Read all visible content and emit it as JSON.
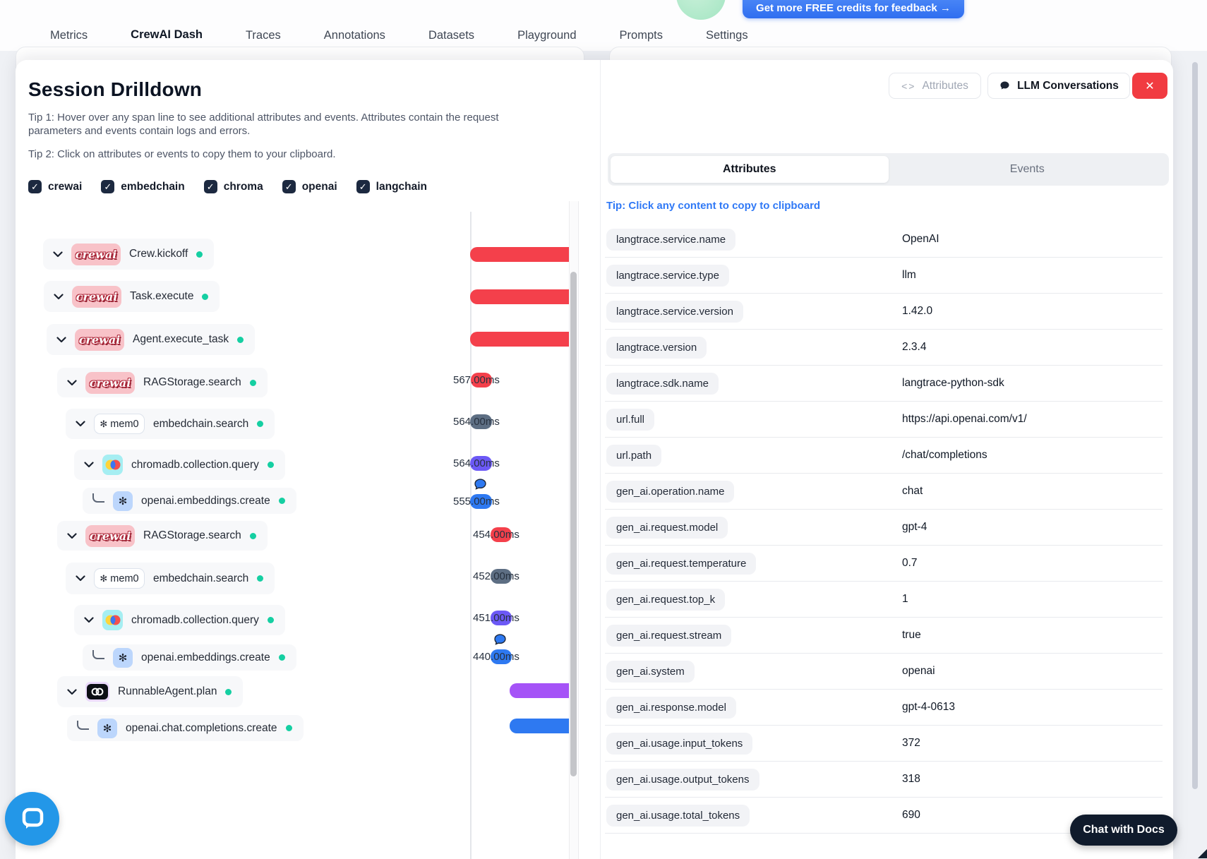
{
  "header": {
    "credits_button": "Get more FREE credits for feedback →"
  },
  "nav": {
    "tabs": [
      {
        "label": "Metrics",
        "active": false
      },
      {
        "label": "CrewAI Dash",
        "active": true
      },
      {
        "label": "Traces",
        "active": false
      },
      {
        "label": "Annotations",
        "active": false
      },
      {
        "label": "Datasets",
        "active": false
      },
      {
        "label": "Playground",
        "active": false
      },
      {
        "label": "Prompts",
        "active": false
      },
      {
        "label": "Settings",
        "active": false
      }
    ]
  },
  "drilldown": {
    "title": "Session Drilldown",
    "tip1": "Tip 1: Hover over any span line to see additional attributes and events. Attributes contain the request parameters and events contain logs and errors.",
    "tip2": "Tip 2: Click on attributes or events to copy them to your clipboard.",
    "filters": [
      {
        "label": "crewai",
        "checked": true
      },
      {
        "label": "embedchain",
        "checked": true
      },
      {
        "label": "chroma",
        "checked": true
      },
      {
        "label": "openai",
        "checked": true
      },
      {
        "label": "langchain",
        "checked": true
      }
    ],
    "spans": [
      {
        "label": "Crew.kickoff",
        "vendor": "crewai",
        "duration": null,
        "color": "red",
        "leaf": false
      },
      {
        "label": "Task.execute",
        "vendor": "crewai",
        "duration": null,
        "color": "red",
        "leaf": false
      },
      {
        "label": "Agent.execute_task",
        "vendor": "crewai",
        "duration": null,
        "color": "red",
        "leaf": false
      },
      {
        "label": "RAGStorage.search",
        "vendor": "crewai",
        "duration": "567.00ms",
        "color": "red",
        "leaf": false
      },
      {
        "label": "embedchain.search",
        "vendor": "mem0",
        "duration": "564.00ms",
        "color": "slate",
        "leaf": false
      },
      {
        "label": "chromadb.collection.query",
        "vendor": "chroma",
        "duration": "564.00ms",
        "color": "indigo",
        "leaf": false
      },
      {
        "label": "openai.embeddings.create",
        "vendor": "openai",
        "duration": "555.00ms",
        "color": "blue",
        "leaf": true,
        "bubble": true
      },
      {
        "label": "RAGStorage.search",
        "vendor": "crewai",
        "duration": "454.00ms",
        "color": "red",
        "leaf": false
      },
      {
        "label": "embedchain.search",
        "vendor": "mem0",
        "duration": "452.00ms",
        "color": "slate",
        "leaf": false
      },
      {
        "label": "chromadb.collection.query",
        "vendor": "chroma",
        "duration": "451.00ms",
        "color": "indigo",
        "leaf": false
      },
      {
        "label": "openai.embeddings.create",
        "vendor": "openai",
        "duration": "440.00ms",
        "color": "blue",
        "leaf": true,
        "bubble": true
      },
      {
        "label": "RunnableAgent.plan",
        "vendor": "langchain",
        "duration": null,
        "color": "purple",
        "leaf": false
      },
      {
        "label": "openai.chat.completions.create",
        "vendor": "openai",
        "duration": null,
        "color": "blue",
        "leaf": true
      }
    ]
  },
  "details": {
    "attributes_button": "Attributes",
    "llm_button": "LLM Conversations",
    "tabs": [
      "Attributes",
      "Events"
    ],
    "active_tab": "Attributes",
    "tip": "Tip: Click any content to copy to clipboard",
    "rows": [
      {
        "key": "langtrace.service.name",
        "value": "OpenAI"
      },
      {
        "key": "langtrace.service.type",
        "value": "llm"
      },
      {
        "key": "langtrace.service.version",
        "value": "1.42.0"
      },
      {
        "key": "langtrace.version",
        "value": "2.3.4"
      },
      {
        "key": "langtrace.sdk.name",
        "value": "langtrace-python-sdk"
      },
      {
        "key": "url.full",
        "value": "https://api.openai.com/v1/"
      },
      {
        "key": "url.path",
        "value": "/chat/completions"
      },
      {
        "key": "gen_ai.operation.name",
        "value": "chat"
      },
      {
        "key": "gen_ai.request.model",
        "value": "gpt-4"
      },
      {
        "key": "gen_ai.request.temperature",
        "value": "0.7"
      },
      {
        "key": "gen_ai.request.top_k",
        "value": "1"
      },
      {
        "key": "gen_ai.request.stream",
        "value": "true"
      },
      {
        "key": "gen_ai.system",
        "value": "openai"
      },
      {
        "key": "gen_ai.response.model",
        "value": "gpt-4-0613"
      },
      {
        "key": "gen_ai.usage.input_tokens",
        "value": "372"
      },
      {
        "key": "gen_ai.usage.output_tokens",
        "value": "318"
      },
      {
        "key": "gen_ai.usage.total_tokens",
        "value": "690"
      }
    ]
  },
  "overlays": {
    "chat_with_docs": "Chat with Docs"
  },
  "colors": {
    "red": "#f4404b",
    "slate": "#5d6e83",
    "indigo": "#6c59f6",
    "blue": "#2e79f1",
    "purple": "#a553f7",
    "teal_dot": "#15cfa2",
    "close_button": "#f13b41",
    "tip_link": "#3079f6"
  }
}
